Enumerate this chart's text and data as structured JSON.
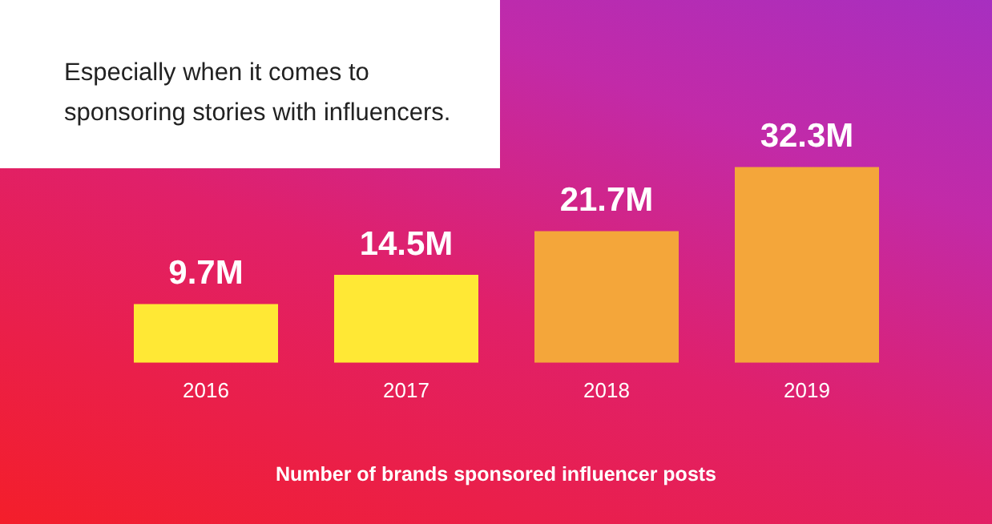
{
  "chart_data": {
    "type": "bar",
    "title": "Especially when it comes to sponsoring stories with influencers.",
    "categories": [
      "2016",
      "2017",
      "2018",
      "2019"
    ],
    "values": [
      9.7,
      14.5,
      21.7,
      32.3
    ],
    "value_labels": [
      "9.7M",
      "14.5M",
      "21.7M",
      "32.3M"
    ],
    "colors": [
      "#ffe835",
      "#ffe835",
      "#f4a63a",
      "#f4a63a"
    ],
    "grid": false,
    "legend": false,
    "annotations": [
      "Number of brands sponsored influencer posts"
    ]
  }
}
